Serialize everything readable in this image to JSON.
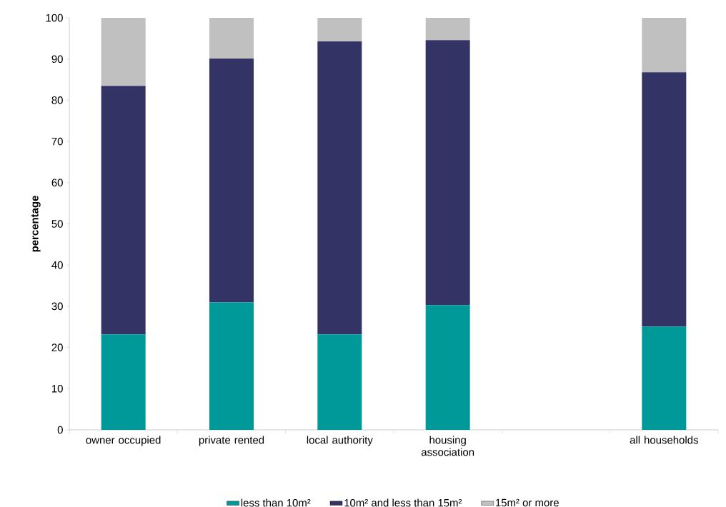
{
  "chart_data": {
    "type": "bar",
    "stacked": true,
    "ylabel": "percentage",
    "categories": [
      "owner occupied",
      "private rented",
      "local authority",
      "housing association",
      null,
      "all households"
    ],
    "series": [
      {
        "name": "less than 10m²",
        "color": "#009999",
        "values": [
          23.2,
          31.0,
          23.2,
          30.3,
          null,
          25.1
        ]
      },
      {
        "name": "10m² and less than 15m²",
        "color": "#333366",
        "values": [
          60.3,
          59.1,
          71.1,
          64.3,
          null,
          61.7
        ]
      },
      {
        "name": "15m² or more",
        "color": "#c0c0c0",
        "values": [
          16.5,
          9.9,
          5.7,
          5.4,
          null,
          13.2
        ]
      }
    ],
    "ylim": [
      0,
      100
    ],
    "yticks": [
      0,
      10,
      20,
      30,
      40,
      50,
      60,
      70,
      80,
      90,
      100
    ],
    "grid": false,
    "legend": "bottom"
  }
}
